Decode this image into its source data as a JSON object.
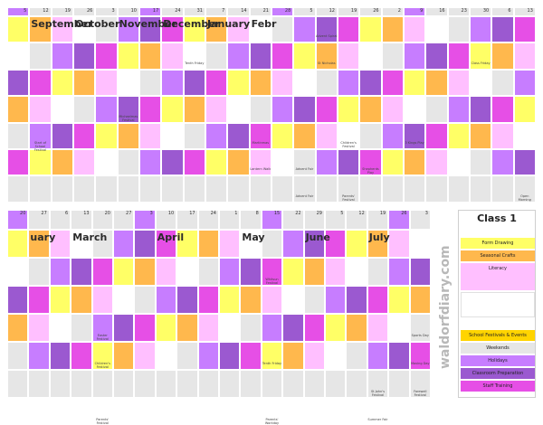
{
  "legend": {
    "title": "Class 1",
    "items": [
      {
        "label": "Form Drawing",
        "color": "#ffff66"
      },
      {
        "label": "Seasonal Crafts",
        "color": "#ffb84d"
      },
      {
        "label": "Literacy",
        "color": "#ffbfff"
      },
      {
        "label": "",
        "color": "#ffffff"
      },
      {
        "label": "School Festivals & Events",
        "color": "#ffd400"
      },
      {
        "label": "Weekends",
        "color": "#e6e6e6"
      },
      {
        "label": "Holidays",
        "color": "#c77dff"
      },
      {
        "label": "Classroom Preparation",
        "color": "#9b59d0"
      },
      {
        "label": "Staff Training",
        "color": "#e64fe6"
      }
    ]
  },
  "watermark": "waldorfdiary.com",
  "top_panel": {
    "months": [
      {
        "label": "September",
        "col": 1
      },
      {
        "label": "October",
        "col": 3
      },
      {
        "label": "November",
        "col": 5
      },
      {
        "label": "December",
        "col": 7
      },
      {
        "label": "January",
        "col": 9
      },
      {
        "label": "Febr",
        "col": 11
      }
    ],
    "week_starts": [
      "5",
      "12",
      "19",
      "26",
      "3",
      "10",
      "17",
      "24",
      "31",
      "7",
      "14",
      "21",
      "28",
      "5",
      "12",
      "19",
      "26",
      "2",
      "9",
      "16",
      "23",
      "30",
      "6",
      "13"
    ],
    "events": [
      {
        "text": "Advent Spiral",
        "row": 0,
        "col": 14
      },
      {
        "text": "Tenth Friday",
        "row": 1,
        "col": 8
      },
      {
        "text": "St Nicholas",
        "row": 1,
        "col": 14
      },
      {
        "text": "Class Friday",
        "row": 1,
        "col": 21
      },
      {
        "text": "Michaelmas Festival",
        "row": 3,
        "col": 5
      },
      {
        "text": "Start of School Festival",
        "row": 4,
        "col": 1
      },
      {
        "text": "Martinmas",
        "row": 4,
        "col": 11
      },
      {
        "text": "Children's Festival",
        "row": 4,
        "col": 15
      },
      {
        "text": "3 Kings Play",
        "row": 4,
        "col": 18
      },
      {
        "text": "Lantern Walk",
        "row": 5,
        "col": 11
      },
      {
        "text": "Advent Fair",
        "row": 5,
        "col": 13
      },
      {
        "text": "Shepherds Play",
        "row": 5,
        "col": 16
      },
      {
        "text": "Advent Fair",
        "row": 6,
        "col": 13
      },
      {
        "text": "Parents' Festival",
        "row": 6,
        "col": 15
      },
      {
        "text": "Open Morning",
        "row": 6,
        "col": 23
      }
    ]
  },
  "bottom_panel": {
    "months": [
      {
        "label": "uary",
        "col": 1
      },
      {
        "label": "March",
        "col": 3
      },
      {
        "label": "April",
        "col": 7
      },
      {
        "label": "May",
        "col": 11
      },
      {
        "label": "June",
        "col": 14
      },
      {
        "label": "July",
        "col": 17
      }
    ],
    "week_starts": [
      "20",
      "27",
      "6",
      "13",
      "20",
      "27",
      "3",
      "10",
      "17",
      "24",
      "1",
      "8",
      "15",
      "22",
      "29",
      "5",
      "12",
      "19",
      "26",
      "3"
    ],
    "events": [
      {
        "text": "Whitsun Festival",
        "row": 1,
        "col": 12
      },
      {
        "text": "Easter Festival",
        "row": 3,
        "col": 4
      },
      {
        "text": "Sports Day",
        "row": 3,
        "col": 19
      },
      {
        "text": "Tenth Friday",
        "row": 4,
        "col": 12
      },
      {
        "text": "Children's Festival",
        "row": 4,
        "col": 4
      },
      {
        "text": "Moving Day",
        "row": 4,
        "col": 19
      },
      {
        "text": "St John's Festival",
        "row": 5,
        "col": 17
      },
      {
        "text": "Farewell Festival",
        "row": 5,
        "col": 19
      },
      {
        "text": "Parents' Festival",
        "row": 6,
        "col": 4
      },
      {
        "text": "Parents' Workday",
        "row": 6,
        "col": 12
      },
      {
        "text": "Summer Fair",
        "row": 6,
        "col": 17
      }
    ]
  }
}
